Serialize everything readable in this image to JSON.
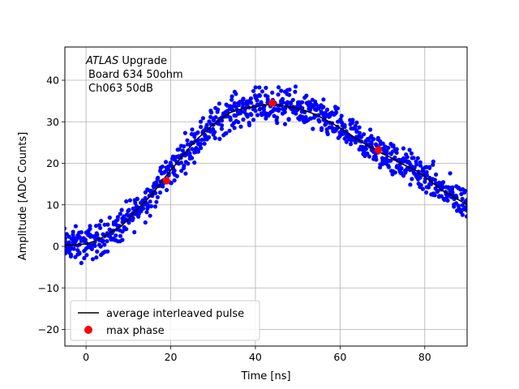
{
  "chart_data": {
    "type": "scatter",
    "xlabel": "Time [ns]",
    "ylabel": "Amplitude [ADC Counts]",
    "xlim": [
      -5,
      90
    ],
    "ylim": [
      -24,
      48
    ],
    "xticks": [
      0,
      20,
      40,
      60,
      80
    ],
    "yticks": [
      -20,
      -10,
      0,
      10,
      20,
      30,
      40
    ],
    "grid": true,
    "annotation": {
      "line1_italic": "ATLAS",
      "line1_rest": " Upgrade",
      "line2": "Board 634 50ohm",
      "line3": "Ch063 50dB"
    },
    "legend": {
      "position": "lower-left",
      "entries": [
        {
          "label": "average interleaved pulse",
          "kind": "line",
          "color": "#000000"
        },
        {
          "label": "max phase",
          "kind": "marker",
          "color": "#ff0000"
        }
      ]
    },
    "series": [
      {
        "kind": "points",
        "color": "#0000ff",
        "description_points": "scattered samples",
        "x_start": -5,
        "x_end": 90,
        "x_step": 0.5,
        "samples_per_x": 5,
        "noise_amplitude": 6
      },
      {
        "name": "average interleaved pulse",
        "kind": "line",
        "color": "#000000",
        "x": [
          -5,
          -2,
          0,
          2,
          4,
          6,
          8,
          10,
          12,
          14,
          16,
          18,
          20,
          22,
          24,
          26,
          28,
          30,
          32,
          34,
          36,
          38,
          40,
          42,
          44,
          46,
          48,
          50,
          52,
          54,
          56,
          58,
          60,
          62,
          64,
          66,
          68,
          70,
          72,
          74,
          76,
          78,
          80,
          82,
          84,
          86,
          88,
          90
        ],
        "y": [
          0.3,
          0.4,
          0.6,
          1.2,
          2.2,
          3.5,
          4.6,
          6.5,
          8.8,
          10.8,
          13,
          15.8,
          18.3,
          20.8,
          23.3,
          25.6,
          27.5,
          29.3,
          30.8,
          32.2,
          32.9,
          33.4,
          33.6,
          34,
          34.2,
          33.9,
          33.6,
          33.2,
          32.6,
          31.8,
          30.8,
          29.7,
          28.5,
          27.2,
          25.8,
          24.6,
          23.5,
          22.3,
          21.4,
          20.2,
          19.2,
          18.2,
          16.8,
          15.2,
          13.5,
          12.5,
          11.2,
          10
        ]
      },
      {
        "name": "max phase",
        "kind": "markers",
        "color": "#ff0000",
        "x": [
          19,
          44,
          69
        ],
        "y": [
          15.8,
          34.5,
          23.2
        ]
      }
    ]
  }
}
